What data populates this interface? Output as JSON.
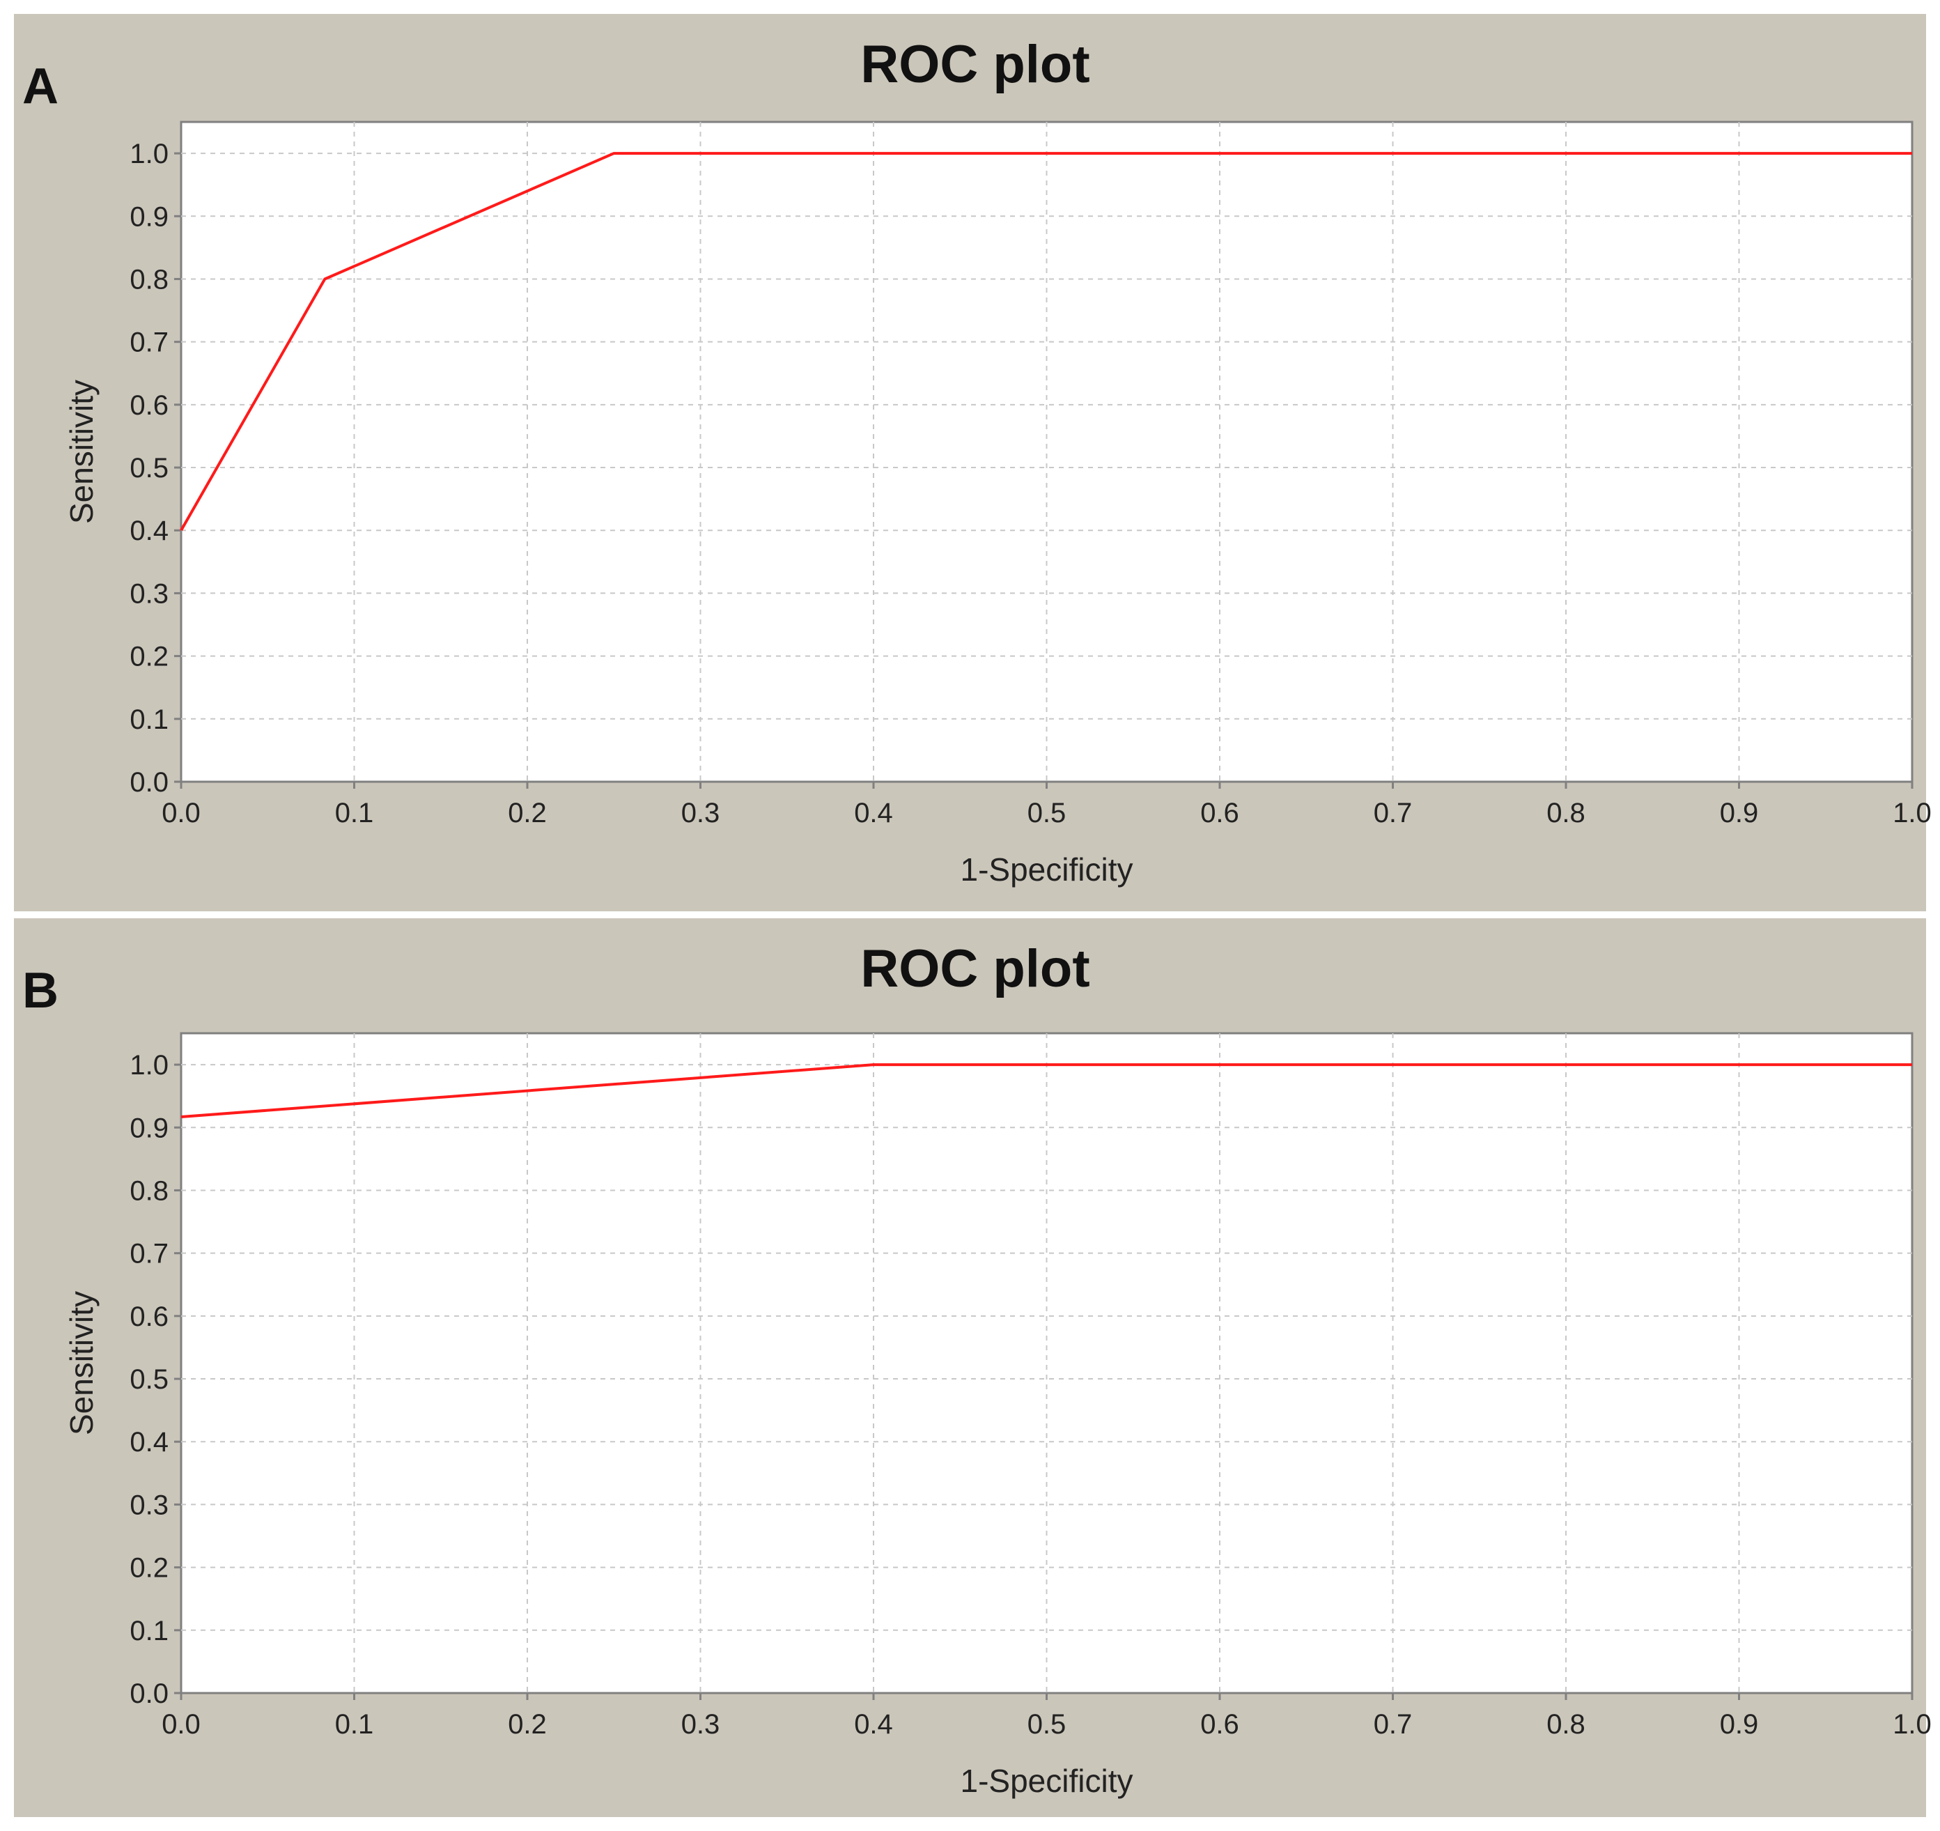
{
  "chart_data": [
    {
      "type": "line",
      "panel_label": "A",
      "title": "ROC plot",
      "xlabel": "1-Specificity",
      "ylabel": "Sensitivity",
      "xlim": [
        0,
        1
      ],
      "ylim": [
        0,
        1.05
      ],
      "xticks": [
        "0.0",
        "0.1",
        "0.2",
        "0.3",
        "0.4",
        "0.5",
        "0.6",
        "0.7",
        "0.8",
        "0.9",
        "1.0"
      ],
      "yticks": [
        "0.0",
        "0.1",
        "0.2",
        "0.3",
        "0.4",
        "0.5",
        "0.6",
        "0.7",
        "0.8",
        "0.9",
        "1.0"
      ],
      "grid": true,
      "series": [
        {
          "color": "#ff1a1a",
          "x": [
            0.0,
            0.083,
            0.25,
            1.0
          ],
          "y": [
            0.4,
            0.8,
            1.0,
            1.0
          ]
        }
      ]
    },
    {
      "type": "line",
      "panel_label": "B",
      "title": "ROC plot",
      "xlabel": "1-Specificity",
      "ylabel": "Sensitivity",
      "xlim": [
        0,
        1
      ],
      "ylim": [
        0,
        1.05
      ],
      "xticks": [
        "0.0",
        "0.1",
        "0.2",
        "0.3",
        "0.4",
        "0.5",
        "0.6",
        "0.7",
        "0.8",
        "0.9",
        "1.0"
      ],
      "yticks": [
        "0.0",
        "0.1",
        "0.2",
        "0.3",
        "0.4",
        "0.5",
        "0.6",
        "0.7",
        "0.8",
        "0.9",
        "1.0"
      ],
      "grid": true,
      "series": [
        {
          "color": "#ff1a1a",
          "x": [
            0.0,
            0.4,
            1.0
          ],
          "y": [
            0.917,
            1.0,
            1.0
          ]
        }
      ]
    }
  ]
}
